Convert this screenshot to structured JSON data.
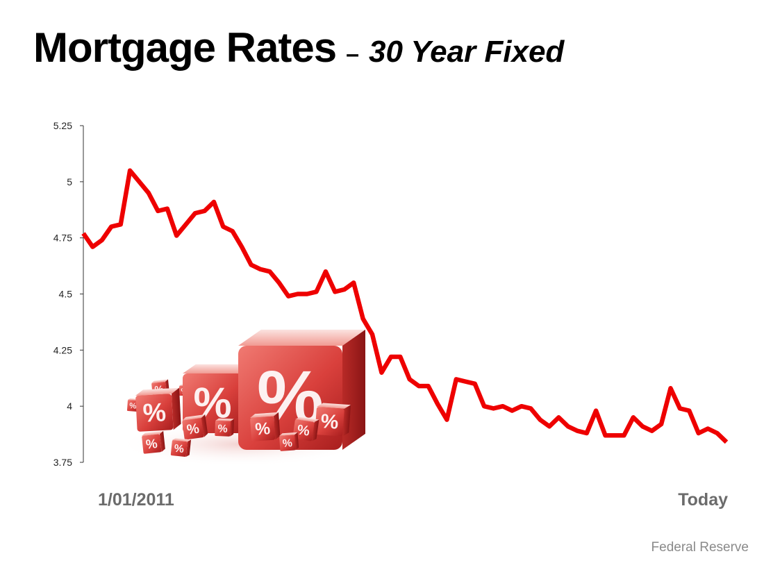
{
  "title": {
    "main": "Mortgage Rates",
    "separator": "–",
    "subtitle": "30 Year Fixed"
  },
  "source": "Federal Reserve",
  "colors": {
    "line": "#ee0000",
    "axis": "#333333",
    "cube": "#d9403c"
  },
  "decoration": {
    "icon": "percent-cubes-illustration",
    "glyph": "%"
  },
  "chart_data": {
    "type": "line",
    "ylim": [
      3.75,
      5.25
    ],
    "yticks": [
      "5.25",
      "5",
      "4.75",
      "4.5",
      "4.25",
      "4",
      "3.75"
    ],
    "x_start_label": "1/01/2011",
    "x_end_label": "Today",
    "grid": false,
    "series": [
      {
        "values": [
          4.77,
          4.71,
          4.74,
          4.8,
          4.81,
          5.05,
          5.0,
          4.95,
          4.87,
          4.88,
          4.76,
          4.81,
          4.86,
          4.87,
          4.91,
          4.8,
          4.78,
          4.71,
          4.63,
          4.61,
          4.6,
          4.55,
          4.49,
          4.5,
          4.5,
          4.51,
          4.6,
          4.51,
          4.52,
          4.55,
          4.39,
          4.32,
          4.15,
          4.22,
          4.22,
          4.12,
          4.09,
          4.09,
          4.01,
          3.94,
          4.12,
          4.11,
          4.1,
          4.0,
          3.99,
          4.0,
          3.98,
          4.0,
          3.99,
          3.94,
          3.91,
          3.95,
          3.91,
          3.89,
          3.88,
          3.98,
          3.87,
          3.87,
          3.87,
          3.95,
          3.91,
          3.89,
          3.92,
          4.08,
          3.99,
          3.98,
          3.88,
          3.9,
          3.88,
          3.84
        ]
      }
    ]
  }
}
